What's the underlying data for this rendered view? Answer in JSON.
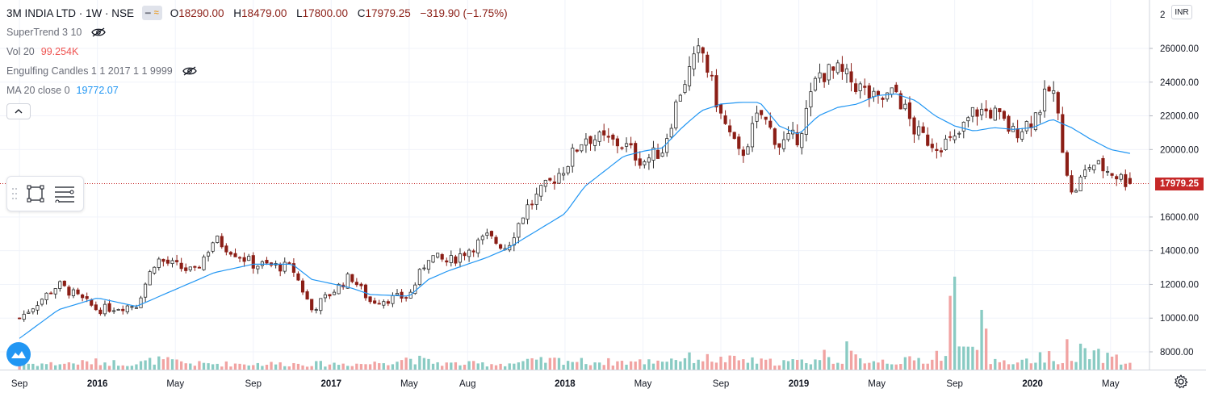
{
  "header": {
    "symbol": "3M INDIA LTD · 1W · NSE",
    "ohlc": [
      {
        "key": "O",
        "value": "18290.00"
      },
      {
        "key": "H",
        "value": "18479.00"
      },
      {
        "key": "L",
        "value": "17800.00"
      },
      {
        "key": "C",
        "value": "17979.25"
      }
    ],
    "change": "−319.90 (−1.75%)"
  },
  "indicators": [
    {
      "name": "SuperTrend 3 10",
      "value": "",
      "hidden": true
    },
    {
      "name": "Vol 20",
      "value": "99.254K",
      "value_color": "#ef5350"
    },
    {
      "name": "Engulfing Candles 1 1 2017 1 1 9999",
      "value": "",
      "hidden": true
    },
    {
      "name": "MA 20 close 0",
      "value": "19772.07",
      "value_color": "#2196f3"
    }
  ],
  "price_axis": {
    "currency": "INR",
    "top_tick_partial": "2",
    "ticks": [
      "26000.00",
      "24000.00",
      "22000.00",
      "20000.00",
      "16000.00",
      "14000.00",
      "12000.00",
      "10000.00",
      "8000.00"
    ],
    "last_price": "17979.25"
  },
  "time_axis": {
    "labels": [
      "Sep",
      "2016",
      "May",
      "Sep",
      "2017",
      "May",
      "Aug",
      "2018",
      "May",
      "Sep",
      "2019",
      "May",
      "Sep",
      "2020",
      "May"
    ]
  },
  "colors": {
    "up": "#26a69a",
    "down": "#ef5350",
    "candle_up_body": "#ffffff",
    "candle_down_body": "#8b1e16",
    "ma": "#2196f3",
    "vol_up": "#89cbc3",
    "vol_down": "#f1a3a2",
    "grid": "#f0f3fa",
    "last_price_line": "#c62828"
  },
  "icons": {
    "eye_hidden": "eye-off-icon",
    "collapse": "chevron-up-icon",
    "rectangle_tool": "rectangle-tool-icon",
    "fib_tool": "fib-lines-icon",
    "logo": "tradingview-logo-icon",
    "settings": "gear-icon"
  },
  "chart_data": {
    "type": "candlestick",
    "period": "weekly",
    "ylim": [
      7000,
      27000
    ],
    "last_price": 17979.25,
    "anchors": [
      {
        "x": "Sep 2015",
        "price": 10000,
        "ma": 8800,
        "vol": 3
      },
      {
        "x": "Nov 2015",
        "price": 12000,
        "ma": 10500,
        "vol": 3
      },
      {
        "x": "Jan 2016",
        "price": 10500,
        "ma": 11200,
        "vol": 4
      },
      {
        "x": "Mar 2016",
        "price": 10800,
        "ma": 10700,
        "vol": 3
      },
      {
        "x": "Apr 2016",
        "price": 13500,
        "ma": 11200,
        "vol": 5
      },
      {
        "x": "Jun 2016",
        "price": 12700,
        "ma": 12200,
        "vol": 3
      },
      {
        "x": "Jul 2016",
        "price": 14700,
        "ma": 12700,
        "vol": 3
      },
      {
        "x": "Sep 2016",
        "price": 13200,
        "ma": 13200,
        "vol": 3
      },
      {
        "x": "Nov 2016",
        "price": 13000,
        "ma": 13200,
        "vol": 3
      },
      {
        "x": "Dec 2016",
        "price": 10500,
        "ma": 12300,
        "vol": 3
      },
      {
        "x": "Feb 2017",
        "price": 12500,
        "ma": 11800,
        "vol": 3
      },
      {
        "x": "Mar 2017",
        "price": 11000,
        "ma": 11400,
        "vol": 3
      },
      {
        "x": "May 2017",
        "price": 11300,
        "ma": 11300,
        "vol": 6
      },
      {
        "x": "Jun 2017",
        "price": 13700,
        "ma": 12300,
        "vol": 4
      },
      {
        "x": "Jul 2017",
        "price": 13300,
        "ma": 12800,
        "vol": 3
      },
      {
        "x": "Sep 2017",
        "price": 14800,
        "ma": 13600,
        "vol": 3
      },
      {
        "x": "Oct 2017",
        "price": 14200,
        "ma": 14100,
        "vol": 3
      },
      {
        "x": "Nov 2017",
        "price": 16500,
        "ma": 14800,
        "vol": 4
      },
      {
        "x": "Jan 2018",
        "price": 19000,
        "ma": 16200,
        "vol": 5
      },
      {
        "x": "Feb 2018",
        "price": 20800,
        "ma": 17800,
        "vol": 4
      },
      {
        "x": "Apr 2018",
        "price": 20300,
        "ma": 19600,
        "vol": 4
      },
      {
        "x": "May 2018",
        "price": 19300,
        "ma": 19900,
        "vol": 4
      },
      {
        "x": "Jun 2018",
        "price": 20000,
        "ma": 20100,
        "vol": 5
      },
      {
        "x": "Jul 2018",
        "price": 23800,
        "ma": 21300,
        "vol": 6
      },
      {
        "x": "Aug 2018",
        "price": 26000,
        "ma": 22300,
        "vol": 6
      },
      {
        "x": "Sep 2018",
        "price": 22000,
        "ma": 22700,
        "vol": 5
      },
      {
        "x": "Oct 2018",
        "price": 19500,
        "ma": 22800,
        "vol": 5
      },
      {
        "x": "Nov 2018",
        "price": 22200,
        "ma": 22800,
        "vol": 4
      },
      {
        "x": "Dec 2018",
        "price": 20300,
        "ma": 21400,
        "vol": 4
      },
      {
        "x": "Jan 2019",
        "price": 20800,
        "ma": 20900,
        "vol": 4
      },
      {
        "x": "Feb 2019",
        "price": 24500,
        "ma": 22000,
        "vol": 5
      },
      {
        "x": "Mar 2019",
        "price": 24600,
        "ma": 22500,
        "vol": 14
      },
      {
        "x": "Apr 2019",
        "price": 23800,
        "ma": 22700,
        "vol": 5
      },
      {
        "x": "May 2019",
        "price": 22800,
        "ma": 23200,
        "vol": 5
      },
      {
        "x": "Jun 2019",
        "price": 23400,
        "ma": 23300,
        "vol": 4
      },
      {
        "x": "Jul 2019",
        "price": 21000,
        "ma": 22900,
        "vol": 5
      },
      {
        "x": "Aug 2019",
        "price": 20300,
        "ma": 22000,
        "vol": 5
      },
      {
        "x": "Sep 2019",
        "price": 20500,
        "ma": 21400,
        "vol": 48
      },
      {
        "x": "Oct 2019",
        "price": 22300,
        "ma": 21100,
        "vol": 47
      },
      {
        "x": "Nov 2019",
        "price": 22200,
        "ma": 21300,
        "vol": 5
      },
      {
        "x": "Dec 2019",
        "price": 21000,
        "ma": 21200,
        "vol": 4
      },
      {
        "x": "Jan 2020",
        "price": 21800,
        "ma": 21300,
        "vol": 5
      },
      {
        "x": "Feb 2020",
        "price": 23800,
        "ma": 21800,
        "vol": 8
      },
      {
        "x": "Mar 2020",
        "price": 17300,
        "ma": 21300,
        "vol": 18
      },
      {
        "x": "Apr 2020",
        "price": 19200,
        "ma": 20600,
        "vol": 8
      },
      {
        "x": "May 2020",
        "price": 18700,
        "ma": 20000,
        "vol": 6
      },
      {
        "x": "Jun 2020",
        "price": 17979.25,
        "ma": 19772.07,
        "vol": 14
      }
    ]
  }
}
